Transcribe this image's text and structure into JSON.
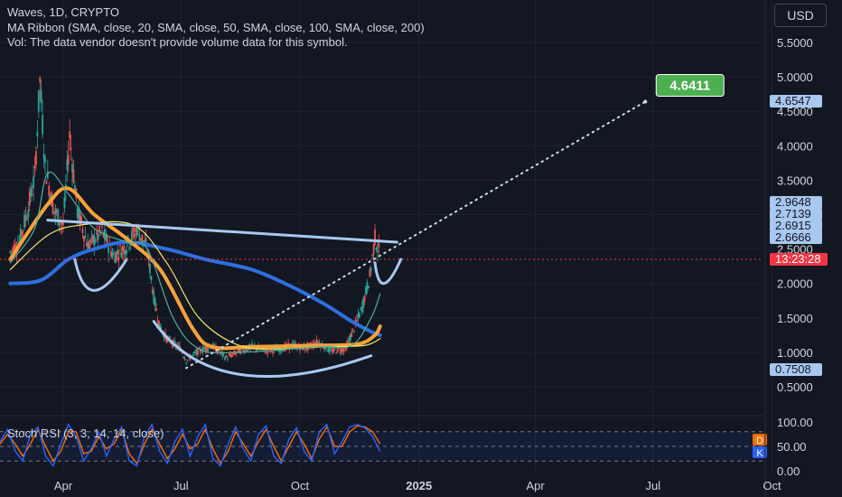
{
  "header": {
    "symbol_line": "Waves, 1D, CRYPTO",
    "ma_line": "MA Ribbon (SMA, close, 20, SMA, close, 50, SMA, close, 100, SMA, close, 200)",
    "vol_line": "Vol: The data vendor doesn't provide volume data for this symbol."
  },
  "currency_button": "USD",
  "rsi_label": "Stoch RSI (3, 3, 14, 14, close)",
  "colors": {
    "background": "#131722",
    "grid": "#1f2330",
    "up": "#26a69a",
    "down": "#ef5350",
    "sma20": "#4caf9a",
    "sma50": "#f5e663",
    "sma100": "#f7a238",
    "sma200": "#2e6fe0",
    "drawing": "#a8c8f0",
    "target": "#4caf50",
    "price_tag": "#f23645",
    "rsi_k": "#2962ff",
    "rsi_d": "#ff6d00"
  },
  "chart_data": {
    "type": "candlestick",
    "symbol": "Waves",
    "interval": "1D",
    "y_axis": {
      "ticks": [
        "5.5000",
        "5.0000",
        "4.5000",
        "4.0000",
        "3.5000",
        "3.0000",
        "2.5000",
        "2.0000",
        "1.5000",
        "1.0000",
        "0.5000"
      ],
      "ylim": [
        0.25,
        5.85
      ]
    },
    "x_axis": {
      "ticks": [
        "Apr",
        "Jul",
        "Oct",
        "2025",
        "Apr",
        "Jul",
        "Oct"
      ]
    },
    "close_series": [
      [
        "2024-02-20",
        2.45
      ],
      [
        "2024-02-27",
        2.6
      ],
      [
        "2024-03-05",
        3.1
      ],
      [
        "2024-03-10",
        3.55
      ],
      [
        "2024-03-14",
        4.95
      ],
      [
        "2024-03-18",
        3.7
      ],
      [
        "2024-03-25",
        3.05
      ],
      [
        "2024-04-01",
        2.85
      ],
      [
        "2024-04-06",
        4.15
      ],
      [
        "2024-04-12",
        3.05
      ],
      [
        "2024-04-20",
        2.55
      ],
      [
        "2024-05-01",
        2.75
      ],
      [
        "2024-05-10",
        2.4
      ],
      [
        "2024-05-20",
        2.55
      ],
      [
        "2024-05-28",
        2.8
      ],
      [
        "2024-06-05",
        2.5
      ],
      [
        "2024-06-10",
        1.8
      ],
      [
        "2024-06-15",
        1.35
      ],
      [
        "2024-06-20",
        1.2
      ],
      [
        "2024-07-01",
        1.05
      ],
      [
        "2024-07-05",
        0.88
      ],
      [
        "2024-07-15",
        1.02
      ],
      [
        "2024-07-25",
        1.1
      ],
      [
        "2024-08-05",
        0.92
      ],
      [
        "2024-08-15",
        1.02
      ],
      [
        "2024-08-25",
        1.08
      ],
      [
        "2024-09-05",
        1.02
      ],
      [
        "2024-09-15",
        1.05
      ],
      [
        "2024-09-25",
        1.1
      ],
      [
        "2024-10-05",
        1.06
      ],
      [
        "2024-10-15",
        1.15
      ],
      [
        "2024-10-25",
        1.02
      ],
      [
        "2024-11-05",
        1.05
      ],
      [
        "2024-11-12",
        1.35
      ],
      [
        "2024-11-18",
        1.65
      ],
      [
        "2024-11-24",
        2.1
      ],
      [
        "2024-11-28",
        2.66
      ],
      [
        "2024-12-02",
        2.4
      ]
    ],
    "moving_averages": [
      {
        "name": "SMA 20",
        "color": "#4caf9a",
        "points": [
          [
            "2024-02-20",
            2.3
          ],
          [
            "2024-03-10",
            2.8
          ],
          [
            "2024-03-20",
            3.6
          ],
          [
            "2024-04-05",
            3.3
          ],
          [
            "2024-04-25",
            2.8
          ],
          [
            "2024-05-20",
            2.6
          ],
          [
            "2024-06-05",
            2.5
          ],
          [
            "2024-06-25",
            1.5
          ],
          [
            "2024-07-15",
            1.05
          ],
          [
            "2024-08-15",
            1.0
          ],
          [
            "2024-10-15",
            1.08
          ],
          [
            "2024-11-10",
            1.1
          ],
          [
            "2024-11-25",
            1.5
          ],
          [
            "2024-12-02",
            1.85
          ]
        ]
      },
      {
        "name": "SMA 50",
        "color": "#f5e663",
        "points": [
          [
            "2024-02-20",
            2.2
          ],
          [
            "2024-03-20",
            2.7
          ],
          [
            "2024-04-15",
            2.85
          ],
          [
            "2024-05-25",
            2.85
          ],
          [
            "2024-06-20",
            2.3
          ],
          [
            "2024-07-15",
            1.5
          ],
          [
            "2024-08-15",
            1.1
          ],
          [
            "2024-09-15",
            1.05
          ],
          [
            "2024-10-20",
            1.08
          ],
          [
            "2024-11-20",
            1.1
          ],
          [
            "2024-12-02",
            1.2
          ]
        ]
      },
      {
        "name": "SMA 100",
        "color": "#f7a238",
        "points": [
          [
            "2024-02-20",
            2.35
          ],
          [
            "2024-03-20",
            3.15
          ],
          [
            "2024-04-05",
            3.38
          ],
          [
            "2024-04-25",
            3.0
          ],
          [
            "2024-05-20",
            2.65
          ],
          [
            "2024-06-15",
            2.2
          ],
          [
            "2024-07-10",
            1.35
          ],
          [
            "2024-07-25",
            1.08
          ],
          [
            "2024-08-25",
            1.08
          ],
          [
            "2024-10-15",
            1.1
          ],
          [
            "2024-11-15",
            1.12
          ],
          [
            "2024-11-28",
            1.25
          ],
          [
            "2024-12-02",
            1.38
          ]
        ]
      },
      {
        "name": "SMA 200",
        "color": "#2e6fe0",
        "points": [
          [
            "2024-02-20",
            2.0
          ],
          [
            "2024-03-15",
            2.05
          ],
          [
            "2024-04-05",
            2.35
          ],
          [
            "2024-04-25",
            2.5
          ],
          [
            "2024-05-20",
            2.6
          ],
          [
            "2024-06-20",
            2.5
          ],
          [
            "2024-07-20",
            2.35
          ],
          [
            "2024-08-25",
            2.2
          ],
          [
            "2024-09-25",
            1.95
          ],
          [
            "2024-10-20",
            1.7
          ],
          [
            "2024-11-10",
            1.45
          ],
          [
            "2024-11-25",
            1.3
          ],
          [
            "2024-12-02",
            1.25
          ]
        ]
      }
    ],
    "drawings": {
      "neckline": [
        [
          "2024-03-20",
          2.92
        ],
        [
          "2024-12-15",
          2.6
        ]
      ],
      "projection": [
        [
          "2024-07-05",
          0.77
        ],
        [
          "2025-06-25",
          4.64
        ]
      ],
      "cup": [
        [
          "2024-06-10",
          1.45
        ],
        [
          "2024-08-15",
          0.68
        ],
        [
          "2024-11-25",
          0.95
        ]
      ],
      "left_shoulder": [
        [
          "2024-04-10",
          2.35
        ],
        [
          "2024-04-25",
          1.9
        ],
        [
          "2024-05-20",
          2.35
        ]
      ],
      "right_handle": [
        [
          "2024-11-28",
          2.3
        ],
        [
          "2024-12-05",
          2.0
        ],
        [
          "2024-12-18",
          2.35
        ]
      ],
      "target_label": "4.6411"
    },
    "price_labels": [
      "4.6547",
      "2.9648",
      "2.7139",
      "2.6915",
      "2.6666",
      "0.7508"
    ],
    "countdown_label": "13:23:28",
    "stoch_rsi": {
      "axis_ticks": [
        "100.00",
        "50.00",
        "0.00"
      ],
      "d_badge": "D",
      "k_badge": "K",
      "k_values": [
        60,
        85,
        40,
        20,
        75,
        90,
        30,
        10,
        55,
        95,
        70,
        20,
        45,
        80,
        30,
        65,
        90,
        20,
        10,
        70,
        95,
        40,
        15,
        60,
        85,
        30,
        70,
        95,
        25,
        10,
        55,
        90,
        45,
        20,
        75,
        92,
        30,
        15,
        65,
        88,
        40,
        20,
        80,
        95,
        35,
        60,
        90,
        95,
        88,
        70,
        40
      ],
      "d_values": [
        55,
        75,
        55,
        30,
        55,
        85,
        50,
        20,
        40,
        80,
        80,
        35,
        40,
        70,
        45,
        55,
        85,
        35,
        15,
        55,
        85,
        55,
        25,
        45,
        75,
        45,
        55,
        85,
        45,
        15,
        40,
        80,
        55,
        30,
        60,
        85,
        50,
        20,
        50,
        80,
        55,
        25,
        65,
        90,
        50,
        50,
        80,
        92,
        90,
        80,
        55
      ]
    }
  }
}
